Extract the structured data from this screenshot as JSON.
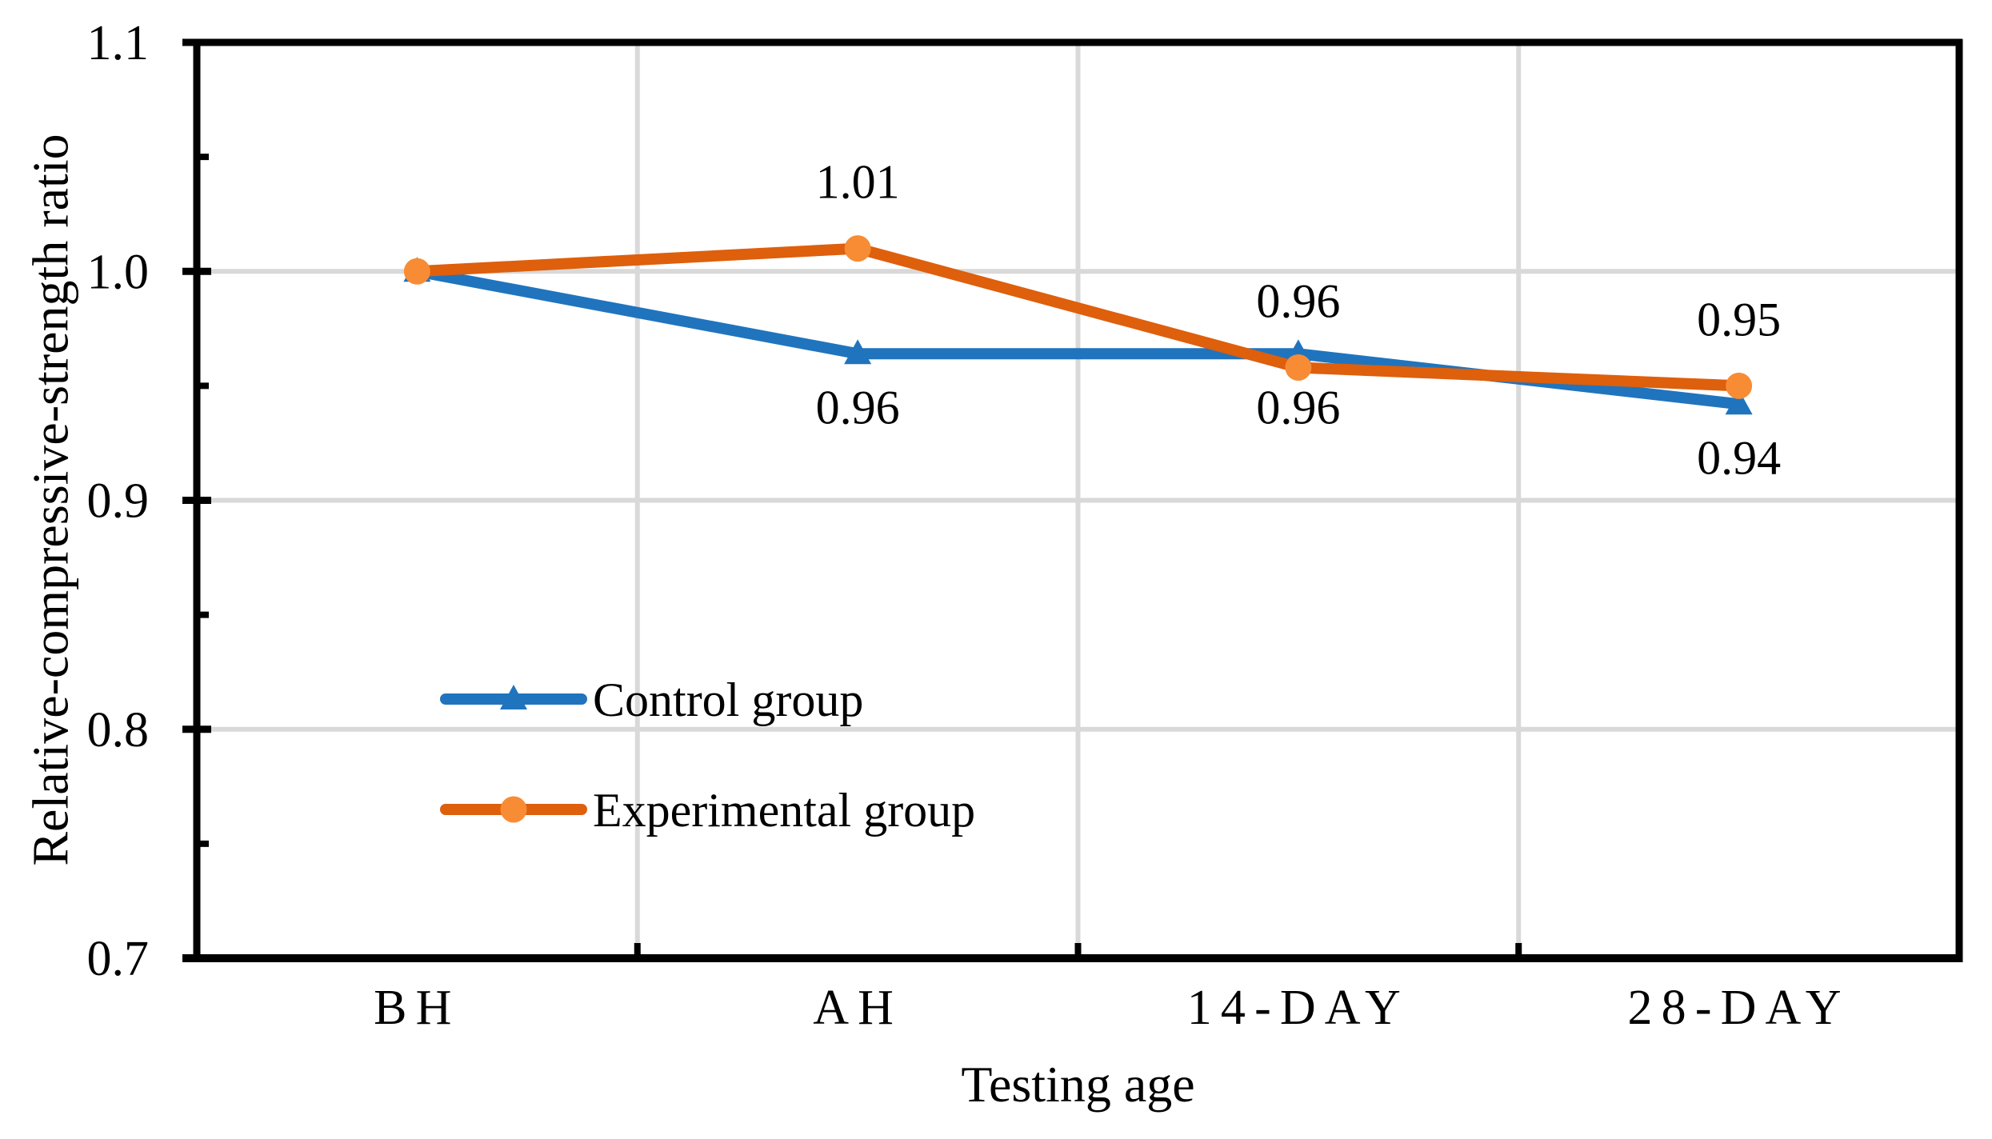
{
  "chart_data": {
    "type": "line",
    "title": "",
    "xlabel": "Testing age",
    "ylabel": "Relative-compressive-strength ratio",
    "categories": [
      "BH",
      "AH",
      "14-DAY",
      "28-DAY"
    ],
    "series": [
      {
        "name": "Control group",
        "marker": "triangle",
        "line_color": "#2074BD",
        "marker_color": "#2074BD",
        "values": [
          1.0,
          0.96,
          0.96,
          0.94
        ],
        "plotted_values": [
          1.0,
          0.964,
          0.964,
          0.942
        ],
        "data_labels": [
          "",
          "0.96",
          "0.96",
          "0.94"
        ],
        "label_placement": "below"
      },
      {
        "name": "Experimental group",
        "marker": "circle",
        "line_color": "#DE5F0C",
        "marker_color": "#F78C35",
        "values": [
          1.0,
          1.01,
          0.96,
          0.95
        ],
        "plotted_values": [
          1.0,
          1.01,
          0.958,
          0.95
        ],
        "data_labels": [
          "",
          "1.01",
          "0.96",
          "0.95"
        ],
        "label_placement": "above"
      }
    ],
    "y_axis": {
      "min": 0.7,
      "max": 1.1,
      "major_step": 0.1,
      "minor_step": 0.05,
      "tick_labels": [
        "0.7",
        "0.8",
        "0.9",
        "1.0",
        "1.1"
      ]
    },
    "x_axis": {
      "tick_labels": [
        "BH",
        "AH",
        "14-DAY",
        "28-DAY"
      ]
    },
    "grid": {
      "horizontal": true,
      "vertical": true,
      "color": "#D9D9D9"
    },
    "legend": {
      "position": "inside-left",
      "entries": [
        "Control group",
        "Experimental group"
      ]
    },
    "colors": {
      "axis": "#000000",
      "text": "#000000",
      "background": "#FFFFFF",
      "control_blue": "#2074BD",
      "experimental_orange_line": "#DE5F0C",
      "experimental_orange_marker": "#F78C35",
      "gridline_gray": "#D9D9D9"
    }
  }
}
